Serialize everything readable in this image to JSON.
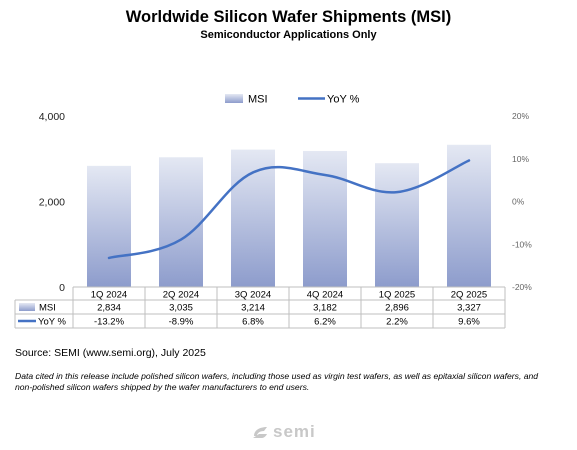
{
  "logo_text": "semi",
  "source": "Source: SEMI (www.semi.org), July 2025",
  "note": "Data cited in this release include polished silicon wafers, including those used as virgin test wafers, as well as epitaxial silicon wafers, and non-polished silicon wafers shipped by the wafer manufacturers to end users.",
  "chart_data": {
    "type": "bar",
    "title": "Worldwide Silicon Wafer Shipments (MSI)",
    "subtitle": "Semiconductor Applications Only",
    "categories": [
      "1Q 2024",
      "2Q 2024",
      "3Q 2024",
      "4Q 2024",
      "1Q 2025",
      "2Q 2025"
    ],
    "series": [
      {
        "name": "MSI",
        "type": "bar",
        "axis": "left",
        "values": [
          2834,
          3035,
          3214,
          3182,
          2896,
          3327
        ],
        "labels": [
          "2,834",
          "3,035",
          "3,214",
          "3,182",
          "2,896",
          "3,327"
        ],
        "color_top": "#e4e8f3",
        "color_bottom": "#8d9ccc"
      },
      {
        "name": "YoY %",
        "type": "line",
        "axis": "right",
        "values": [
          -13.2,
          -8.9,
          6.8,
          6.2,
          2.2,
          9.6
        ],
        "labels": [
          "-13.2%",
          "-8.9%",
          "6.8%",
          "6.2%",
          "2.2%",
          "9.6%"
        ],
        "color": "#4472c4"
      }
    ],
    "ylim_left": [
      0,
      4000
    ],
    "yticks_left": [
      "0",
      "2,000",
      "4,000"
    ],
    "ylim_right": [
      -20,
      20
    ],
    "yticks_right": [
      "-20%",
      "-10%",
      "0%",
      "10%",
      "20%"
    ],
    "legend_position": "top-center",
    "data_table": true,
    "grid": false
  }
}
